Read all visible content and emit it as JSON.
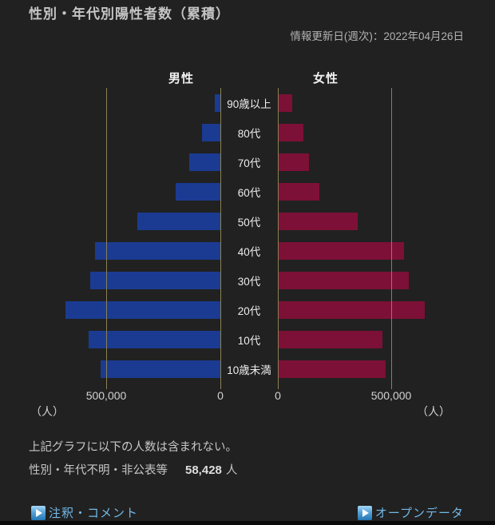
{
  "page": {
    "title": "性別・年代別陽性者数（累積）",
    "updated": "情報更新日(週次)：2022年04月26日"
  },
  "chart_data": {
    "type": "bar",
    "subtype": "population-pyramid-horizontal",
    "categories": [
      "90歳以上",
      "80代",
      "70代",
      "60代",
      "50代",
      "40代",
      "30代",
      "20代",
      "10代",
      "10歳未満"
    ],
    "series": [
      {
        "name": "男性",
        "color": "#1b3b92",
        "values": [
          24000,
          80000,
          137000,
          196000,
          367000,
          553000,
          575000,
          683000,
          580000,
          528000
        ]
      },
      {
        "name": "女性",
        "color": "#7d1036",
        "values": [
          62000,
          112000,
          137000,
          182000,
          350000,
          556000,
          577000,
          646000,
          462000,
          475000
        ]
      }
    ],
    "xlabel": "",
    "ylabel": "",
    "xmax": 700000,
    "gridline_value": 500000,
    "gridline_color": "#8a8157",
    "axis_ticks": [
      "500,000",
      "0",
      "0",
      "500,000"
    ],
    "unit_label": "（人）",
    "grid": true,
    "legend_position": "top"
  },
  "notes": {
    "line1": "上記グラフに以下の人数は含まれない。",
    "line2_label": "性別・年代不明・非公表等",
    "line2_value": "58,428",
    "line2_unit": "人"
  },
  "footer": {
    "links": [
      {
        "label": "注釈・コメント"
      },
      {
        "label": "オープンデータ"
      }
    ],
    "link_color": "#72b9e8"
  }
}
